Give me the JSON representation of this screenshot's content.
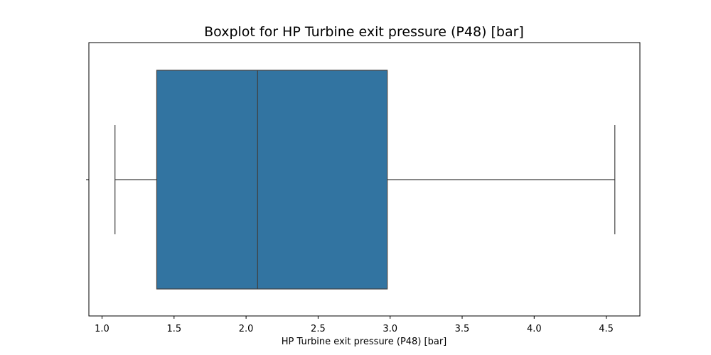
{
  "chart_data": {
    "type": "boxplot",
    "orientation": "horizontal",
    "title": "Boxplot for HP Turbine exit pressure (P48) [bar]",
    "xlabel": "HP Turbine exit pressure (P48) [bar]",
    "ylabel": "",
    "xlim": [
      1.0,
      4.57
    ],
    "xticks": [
      1.0,
      1.5,
      2.0,
      2.5,
      3.0,
      3.5,
      4.0,
      4.5
    ],
    "xtick_labels": [
      "1.0",
      "1.5",
      "2.0",
      "2.5",
      "3.0",
      "3.5",
      "4.0",
      "4.5"
    ],
    "grid": false,
    "box": {
      "whisker_low": 1.09,
      "q1": 1.38,
      "median": 2.08,
      "q3": 2.98,
      "whisker_high": 4.56
    },
    "colors": {
      "box_fill": "#3274a1",
      "line": "#3f3f3f"
    }
  }
}
